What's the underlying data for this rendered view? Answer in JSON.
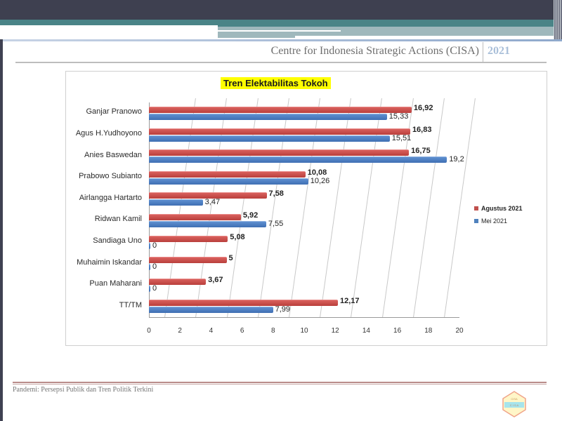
{
  "header": {
    "organization": "Centre for Indonesia Strategic Actions (CISA)",
    "year": "2021"
  },
  "footer": {
    "text": "Pandemi: Persepsi Publik dan Tren Politik Terkini",
    "logo_icon": "cisa-logo-icon"
  },
  "colors": {
    "agustus": "#c0504d",
    "mei": "#4f81bd",
    "title_highlight": "#ffff00"
  },
  "chart_data": {
    "type": "bar",
    "orientation": "horizontal",
    "title": "Tren Elektabilitas Tokoh",
    "xlabel": "",
    "ylabel": "",
    "xlim": [
      0,
      20
    ],
    "x_ticks": [
      "0",
      "2",
      "4",
      "6",
      "8",
      "10",
      "12",
      "14",
      "16",
      "18",
      "20"
    ],
    "grid": true,
    "legend_position": "right",
    "categories": [
      "Ganjar Pranowo",
      "Agus H.Yudhoyono",
      "Anies Baswedan",
      "Prabowo Subianto",
      "Airlangga Hartarto",
      "Ridwan Kamil",
      "Sandiaga Uno",
      "Muhaimin Iskandar",
      "Puan Maharani",
      "TT/TM"
    ],
    "series": [
      {
        "name": "Agustus 2021",
        "color": "#c0504d",
        "values": [
          16.92,
          16.83,
          16.75,
          10.08,
          7.58,
          5.92,
          5.08,
          5,
          3.67,
          12.17
        ],
        "labels": [
          "16,92",
          "16,83",
          "16,75",
          "10,08",
          "7,58",
          "5,92",
          "5,08",
          "5",
          "3,67",
          "12,17"
        ]
      },
      {
        "name": "Mei 2021",
        "color": "#4f81bd",
        "values": [
          15.33,
          15.51,
          19.2,
          10.26,
          3.47,
          7.55,
          0,
          0,
          0,
          7.99
        ],
        "labels": [
          "15,33",
          "15,51",
          "19,2",
          "10,26",
          "3,47",
          "7,55",
          "0",
          "0",
          "0",
          "7,99"
        ]
      }
    ]
  }
}
